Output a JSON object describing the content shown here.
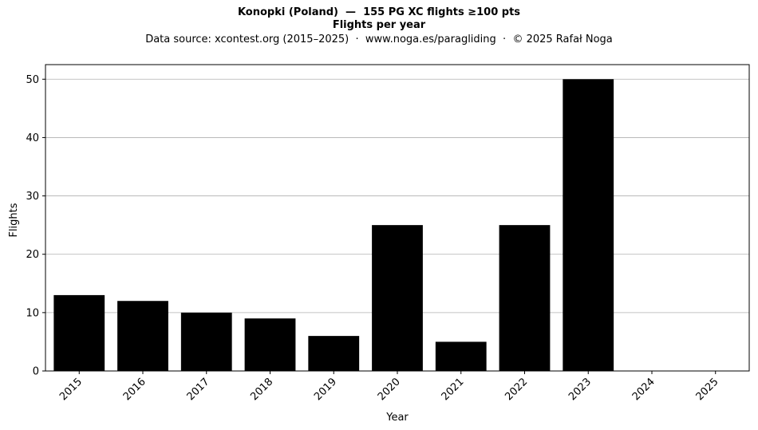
{
  "chart_data": {
    "type": "bar",
    "title": "Konopki (Poland)  —  155 PG XC flights ≥100 pts",
    "subtitle": "Flights per year",
    "source_note": "Data source: xcontest.org (2015–2025)  ·  www.noga.es/paragliding  ·  © 2025 Rafał Noga",
    "xlabel": "Year",
    "ylabel": "Flights",
    "categories": [
      "2015",
      "2016",
      "2017",
      "2018",
      "2019",
      "2020",
      "2021",
      "2022",
      "2023",
      "2024",
      "2025"
    ],
    "values": [
      13,
      12,
      10,
      9,
      6,
      25,
      5,
      25,
      50,
      0,
      0
    ],
    "ylim": [
      0,
      52.5
    ],
    "yticks": [
      0,
      10,
      20,
      30,
      40,
      50
    ],
    "grid": "y",
    "bar_color": "#000000",
    "grid_color": "#b0b0b0"
  }
}
